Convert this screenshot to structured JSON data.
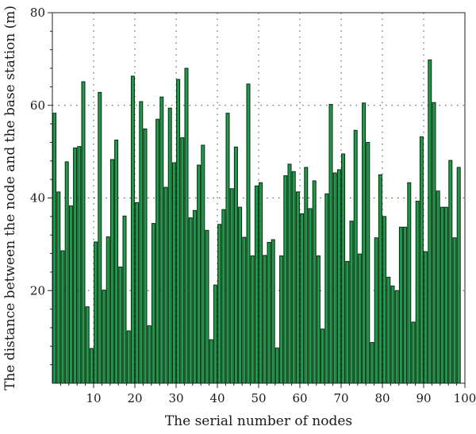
{
  "chart_data": {
    "type": "bar",
    "title": "",
    "xlabel": "The serial number of nodes",
    "ylabel": "The distance between the node and the base station (m)",
    "x": [
      1,
      2,
      3,
      4,
      5,
      6,
      7,
      8,
      9,
      10,
      11,
      12,
      13,
      14,
      15,
      16,
      17,
      18,
      19,
      20,
      21,
      22,
      23,
      24,
      25,
      26,
      27,
      28,
      29,
      30,
      31,
      32,
      33,
      34,
      35,
      36,
      37,
      38,
      39,
      40,
      41,
      42,
      43,
      44,
      45,
      46,
      47,
      48,
      49,
      50,
      51,
      52,
      53,
      54,
      55,
      56,
      57,
      58,
      59,
      60,
      61,
      62,
      63,
      64,
      65,
      66,
      67,
      68,
      69,
      70,
      71,
      72,
      73,
      74,
      75,
      76,
      77,
      78,
      79,
      80,
      81,
      82,
      83,
      84,
      85,
      86,
      87,
      88,
      89,
      90,
      91,
      92,
      93,
      94,
      95,
      96,
      97,
      98,
      99,
      100
    ],
    "values": [
      58.3,
      41.3,
      28.6,
      47.8,
      38.3,
      50.8,
      51.1,
      65.1,
      16.5,
      7.5,
      30.5,
      62.8,
      20.1,
      31.6,
      48.3,
      52.5,
      25.1,
      36.1,
      11.3,
      66.3,
      39.0,
      60.8,
      54.9,
      12.4,
      34.5,
      57.0,
      61.8,
      42.3,
      59.4,
      47.6,
      65.6,
      53.0,
      68.0,
      35.7,
      37.3,
      47.1,
      51.4,
      33.0,
      9.4,
      21.2,
      34.3,
      37.5,
      58.3,
      42.0,
      51.0,
      38.0,
      31.5,
      64.6,
      27.5,
      42.6,
      43.3,
      27.6,
      30.4,
      31.0,
      7.6,
      27.5,
      44.8,
      47.3,
      45.7,
      41.3,
      36.6,
      46.6,
      37.7,
      43.7,
      27.5,
      11.7,
      40.9,
      60.2,
      45.4,
      46.1,
      49.5,
      26.3,
      35.0,
      54.6,
      27.9,
      60.5,
      52.0,
      8.8,
      31.4,
      45.0,
      36.0,
      22.9,
      21.0,
      20.0,
      33.7,
      33.7,
      43.3,
      13.2,
      39.3,
      53.2,
      28.4,
      69.8,
      60.6,
      41.5,
      38.0,
      38.0,
      48.1,
      31.4,
      46.6,
      0
    ],
    "ylim": [
      0,
      80
    ],
    "xlim": [
      0,
      100
    ],
    "xticks": [
      "10",
      "20",
      "30",
      "40",
      "50",
      "60",
      "70",
      "80",
      "90",
      "100"
    ],
    "yticks": [
      "20",
      "40",
      "60",
      "80"
    ],
    "grid": true,
    "grid_style": "dotted",
    "bar_color": "#1f9a4a",
    "bar_edge_color": "#0b2a12"
  }
}
